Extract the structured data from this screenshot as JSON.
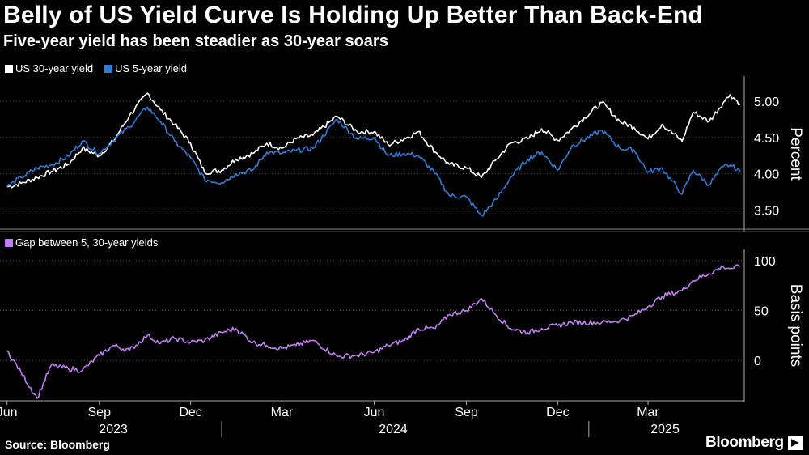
{
  "title": "Belly of US Yield Curve Is Holding Up Better Than Back-End",
  "subtitle": "Five-year yield has been steadier as 30-year soars",
  "source": "Source: Bloomberg",
  "brand": "Bloomberg",
  "colors": {
    "us30": "#ffffff",
    "us5": "#2f7bd8",
    "gap": "#c07ef2",
    "grid": "#555555"
  },
  "legend_top": [
    {
      "label": "US 30-year yield",
      "color": "#ffffff"
    },
    {
      "label": "US 5-year yield",
      "color": "#2f7bd8"
    }
  ],
  "legend_bottom": [
    {
      "label": "Gap between 5, 30-year yields",
      "color": "#c07ef2"
    }
  ],
  "chart_data": [
    {
      "type": "line",
      "title": "Belly of US Yield Curve Is Holding Up Better Than Back-End",
      "ylabel": "Percent",
      "ylim": [
        3.25,
        5.3
      ],
      "yticks": [
        3.5,
        4.0,
        4.5,
        5.0
      ],
      "ytick_labels": [
        "3.50",
        "4.00",
        "4.50",
        "5.00"
      ],
      "x": [
        "2023-06-01",
        "2023-06-15",
        "2023-07-01",
        "2023-07-15",
        "2023-08-01",
        "2023-08-15",
        "2023-09-01",
        "2023-09-15",
        "2023-10-01",
        "2023-10-19",
        "2023-11-01",
        "2023-11-15",
        "2023-12-01",
        "2023-12-15",
        "2024-01-01",
        "2024-01-15",
        "2024-02-01",
        "2024-02-15",
        "2024-03-01",
        "2024-03-15",
        "2024-04-01",
        "2024-04-25",
        "2024-05-15",
        "2024-06-01",
        "2024-06-15",
        "2024-07-01",
        "2024-07-15",
        "2024-08-01",
        "2024-08-15",
        "2024-09-01",
        "2024-09-16",
        "2024-10-01",
        "2024-10-15",
        "2024-11-01",
        "2024-11-15",
        "2024-12-01",
        "2024-12-15",
        "2025-01-14",
        "2025-02-01",
        "2025-02-15",
        "2025-03-01",
        "2025-03-15",
        "2025-04-04",
        "2025-04-15",
        "2025-05-01",
        "2025-05-15",
        "2025-05-22",
        "2025-06-01"
      ],
      "series": [
        {
          "name": "US 30-year yield",
          "values": [
            3.82,
            3.87,
            3.95,
            4.03,
            4.13,
            4.35,
            4.25,
            4.45,
            4.8,
            5.11,
            4.88,
            4.68,
            4.42,
            4.02,
            4.05,
            4.2,
            4.28,
            4.42,
            4.35,
            4.48,
            4.53,
            4.79,
            4.58,
            4.58,
            4.4,
            4.48,
            4.58,
            4.3,
            4.13,
            4.08,
            3.95,
            4.2,
            4.42,
            4.48,
            4.62,
            4.46,
            4.62,
            4.98,
            4.72,
            4.64,
            4.48,
            4.68,
            4.45,
            4.85,
            4.72,
            4.98,
            5.09,
            4.96
          ]
        },
        {
          "name": "US 5-year yield",
          "values": [
            3.82,
            3.95,
            4.08,
            4.12,
            4.24,
            4.45,
            4.28,
            4.46,
            4.65,
            4.92,
            4.72,
            4.45,
            4.22,
            3.92,
            3.88,
            4.0,
            4.05,
            4.3,
            4.28,
            4.32,
            4.35,
            4.75,
            4.48,
            4.5,
            4.25,
            4.28,
            4.25,
            4.0,
            3.7,
            3.68,
            3.42,
            3.65,
            3.95,
            4.2,
            4.3,
            4.05,
            4.38,
            4.6,
            4.35,
            4.33,
            4.02,
            4.08,
            3.72,
            4.05,
            3.85,
            4.1,
            4.12,
            4.03
          ]
        }
      ]
    },
    {
      "type": "line",
      "title": "Gap between 5, 30-year yields",
      "ylabel": "Basis points",
      "ylim": [
        -38,
        108
      ],
      "yticks": [
        0,
        50,
        100
      ],
      "ytick_labels": [
        "0",
        "50",
        "100"
      ],
      "x": [
        "2023-06-01",
        "2023-06-15",
        "2023-07-01",
        "2023-07-15",
        "2023-08-01",
        "2023-08-15",
        "2023-09-01",
        "2023-09-15",
        "2023-10-01",
        "2023-10-19",
        "2023-11-01",
        "2023-11-15",
        "2023-12-01",
        "2023-12-15",
        "2024-01-01",
        "2024-01-15",
        "2024-02-01",
        "2024-02-15",
        "2024-03-01",
        "2024-03-15",
        "2024-04-01",
        "2024-04-25",
        "2024-05-15",
        "2024-06-01",
        "2024-06-15",
        "2024-07-01",
        "2024-07-15",
        "2024-08-01",
        "2024-08-15",
        "2024-09-01",
        "2024-09-16",
        "2024-10-01",
        "2024-10-15",
        "2024-11-01",
        "2024-11-15",
        "2024-12-01",
        "2024-12-15",
        "2025-01-14",
        "2025-02-01",
        "2025-02-15",
        "2025-03-01",
        "2025-03-15",
        "2025-04-04",
        "2025-04-15",
        "2025-05-01",
        "2025-05-15",
        "2025-05-22",
        "2025-06-01"
      ],
      "series": [
        {
          "name": "Gap between 5, 30-year yields",
          "values": [
            10,
            -12,
            -38,
            -5,
            -8,
            -10,
            5,
            15,
            10,
            25,
            17,
            22,
            18,
            20,
            28,
            32,
            18,
            15,
            12,
            15,
            20,
            4,
            5,
            8,
            15,
            20,
            32,
            32,
            46,
            50,
            62,
            45,
            32,
            28,
            32,
            35,
            38,
            38,
            40,
            45,
            54,
            64,
            70,
            80,
            87,
            94,
            92,
            94
          ]
        }
      ]
    }
  ],
  "x_axis": {
    "month_ticks": [
      {
        "label": "Jun",
        "date": "2023-06-01"
      },
      {
        "label": "Sep",
        "date": "2023-09-01"
      },
      {
        "label": "Dec",
        "date": "2023-12-01"
      },
      {
        "label": "Mar",
        "date": "2024-03-01"
      },
      {
        "label": "Jun",
        "date": "2024-06-01"
      },
      {
        "label": "Sep",
        "date": "2024-09-01"
      },
      {
        "label": "Dec",
        "date": "2024-12-01"
      },
      {
        "label": "Mar",
        "date": "2025-03-01"
      }
    ],
    "years": [
      {
        "label": "2023",
        "center": "2023-09-15"
      },
      {
        "label": "2024",
        "center": "2024-06-20"
      },
      {
        "label": "2025",
        "center": "2025-03-18"
      }
    ],
    "year_boundaries": [
      "2024-01-01",
      "2025-01-01"
    ],
    "start": "2023-05-25",
    "end": "2025-06-05"
  }
}
